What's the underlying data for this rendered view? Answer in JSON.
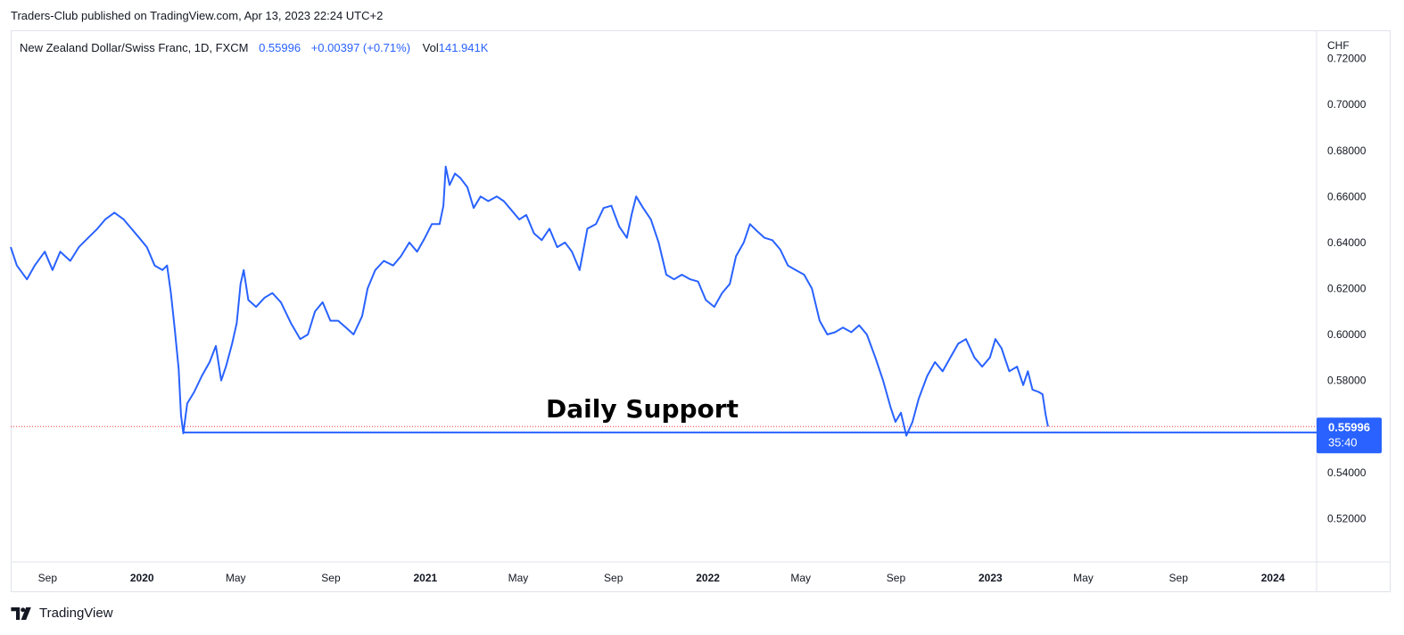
{
  "publisher_line": "Traders-Club published on TradingView.com, Apr 13, 2023 22:24 UTC+2",
  "legend": {
    "symbol": "New Zealand Dollar/Swiss Franc, 1D, FXCM",
    "last": "0.55996",
    "change": "+0.00397 (+0.71%)",
    "vol_label": "Vol",
    "vol_value": "141.941K"
  },
  "footer": {
    "brand": "TradingView",
    "logo_icon": "tradingview-logo-icon"
  },
  "colors": {
    "line": "#2962ff",
    "grid": "#e0e3eb",
    "text": "#131722",
    "last_dotted": "#f23645"
  },
  "chart_data": {
    "type": "line",
    "ylabel": "CHF",
    "ylim": [
      0.505,
      0.728
    ],
    "y_ticks": [
      "0.72000",
      "0.70000",
      "0.68000",
      "0.66000",
      "0.64000",
      "0.62000",
      "0.60000",
      "0.58000",
      "0.54000",
      "0.52000"
    ],
    "x_range": [
      "2019-08-12",
      "2024-03-25"
    ],
    "x_ticks": [
      {
        "label": "Sep",
        "date": "2019-09-01",
        "bold": false
      },
      {
        "label": "2020",
        "date": "2020-01-01",
        "bold": true
      },
      {
        "label": "May",
        "date": "2020-05-01",
        "bold": false
      },
      {
        "label": "Sep",
        "date": "2020-09-01",
        "bold": false
      },
      {
        "label": "2021",
        "date": "2021-01-01",
        "bold": true
      },
      {
        "label": "May",
        "date": "2021-05-01",
        "bold": false
      },
      {
        "label": "Sep",
        "date": "2021-09-01",
        "bold": false
      },
      {
        "label": "2022",
        "date": "2022-01-01",
        "bold": true
      },
      {
        "label": "May",
        "date": "2022-05-01",
        "bold": false
      },
      {
        "label": "Sep",
        "date": "2022-09-01",
        "bold": false
      },
      {
        "label": "2023",
        "date": "2023-01-01",
        "bold": true
      },
      {
        "label": "May",
        "date": "2023-05-01",
        "bold": false
      },
      {
        "label": "Sep",
        "date": "2023-09-01",
        "bold": false
      },
      {
        "label": "2024",
        "date": "2024-01-01",
        "bold": true
      }
    ],
    "series": [
      {
        "points": [
          [
            "2019-08-12",
            0.638
          ],
          [
            "2019-08-20",
            0.63
          ],
          [
            "2019-09-02",
            0.624
          ],
          [
            "2019-09-12",
            0.63
          ],
          [
            "2019-09-25",
            0.636
          ],
          [
            "2019-10-05",
            0.628
          ],
          [
            "2019-10-15",
            0.636
          ],
          [
            "2019-10-28",
            0.632
          ],
          [
            "2019-11-08",
            0.638
          ],
          [
            "2019-11-20",
            0.642
          ],
          [
            "2019-12-02",
            0.646
          ],
          [
            "2019-12-12",
            0.65
          ],
          [
            "2019-12-24",
            0.653
          ],
          [
            "2020-01-05",
            0.65
          ],
          [
            "2020-01-15",
            0.646
          ],
          [
            "2020-01-25",
            0.642
          ],
          [
            "2020-02-04",
            0.638
          ],
          [
            "2020-02-14",
            0.63
          ],
          [
            "2020-02-24",
            0.628
          ],
          [
            "2020-03-01",
            0.63
          ],
          [
            "2020-03-06",
            0.618
          ],
          [
            "2020-03-11",
            0.602
          ],
          [
            "2020-03-16",
            0.585
          ],
          [
            "2020-03-19",
            0.565
          ],
          [
            "2020-03-22",
            0.557
          ],
          [
            "2020-03-27",
            0.57
          ],
          [
            "2020-04-05",
            0.575
          ],
          [
            "2020-04-15",
            0.582
          ],
          [
            "2020-04-25",
            0.588
          ],
          [
            "2020-05-03",
            0.595
          ],
          [
            "2020-05-10",
            0.58
          ],
          [
            "2020-05-16",
            0.586
          ],
          [
            "2020-05-24",
            0.596
          ],
          [
            "2020-05-30",
            0.605
          ],
          [
            "2020-06-04",
            0.622
          ],
          [
            "2020-06-08",
            0.628
          ],
          [
            "2020-06-14",
            0.615
          ],
          [
            "2020-06-24",
            0.612
          ],
          [
            "2020-07-05",
            0.616
          ],
          [
            "2020-07-15",
            0.618
          ],
          [
            "2020-07-26",
            0.614
          ],
          [
            "2020-08-08",
            0.605
          ],
          [
            "2020-08-20",
            0.598
          ],
          [
            "2020-08-30",
            0.6
          ],
          [
            "2020-09-08",
            0.61
          ],
          [
            "2020-09-18",
            0.614
          ],
          [
            "2020-09-28",
            0.606
          ],
          [
            "2020-10-08",
            0.606
          ],
          [
            "2020-10-18",
            0.603
          ],
          [
            "2020-10-28",
            0.6
          ],
          [
            "2020-11-08",
            0.608
          ],
          [
            "2020-11-15",
            0.62
          ],
          [
            "2020-11-25",
            0.628
          ],
          [
            "2020-12-06",
            0.632
          ],
          [
            "2020-12-18",
            0.63
          ],
          [
            "2020-12-28",
            0.634
          ],
          [
            "2021-01-08",
            0.64
          ],
          [
            "2021-01-18",
            0.636
          ],
          [
            "2021-01-28",
            0.642
          ],
          [
            "2021-02-06",
            0.648
          ],
          [
            "2021-02-16",
            0.648
          ],
          [
            "2021-02-21",
            0.656
          ],
          [
            "2021-02-24",
            0.673
          ],
          [
            "2021-03-01",
            0.665
          ],
          [
            "2021-03-08",
            0.67
          ],
          [
            "2021-03-15",
            0.668
          ],
          [
            "2021-03-24",
            0.664
          ],
          [
            "2021-04-01",
            0.655
          ],
          [
            "2021-04-10",
            0.66
          ],
          [
            "2021-04-20",
            0.658
          ],
          [
            "2021-05-01",
            0.66
          ],
          [
            "2021-05-10",
            0.658
          ],
          [
            "2021-05-20",
            0.654
          ],
          [
            "2021-05-30",
            0.65
          ],
          [
            "2021-06-08",
            0.652
          ],
          [
            "2021-06-18",
            0.644
          ],
          [
            "2021-06-28",
            0.641
          ],
          [
            "2021-07-08",
            0.646
          ],
          [
            "2021-07-18",
            0.638
          ],
          [
            "2021-07-28",
            0.64
          ],
          [
            "2021-08-06",
            0.636
          ],
          [
            "2021-08-16",
            0.628
          ],
          [
            "2021-08-26",
            0.646
          ],
          [
            "2021-09-06",
            0.648
          ],
          [
            "2021-09-16",
            0.655
          ],
          [
            "2021-09-26",
            0.656
          ],
          [
            "2021-10-06",
            0.647
          ],
          [
            "2021-10-16",
            0.642
          ],
          [
            "2021-10-22",
            0.652
          ],
          [
            "2021-10-28",
            0.66
          ],
          [
            "2021-11-06",
            0.655
          ],
          [
            "2021-11-16",
            0.65
          ],
          [
            "2021-11-26",
            0.64
          ],
          [
            "2021-12-06",
            0.626
          ],
          [
            "2021-12-16",
            0.624
          ],
          [
            "2021-12-26",
            0.626
          ],
          [
            "2022-01-06",
            0.624
          ],
          [
            "2022-01-16",
            0.623
          ],
          [
            "2022-01-26",
            0.615
          ],
          [
            "2022-02-06",
            0.612
          ],
          [
            "2022-02-16",
            0.618
          ],
          [
            "2022-02-26",
            0.622
          ],
          [
            "2022-03-06",
            0.634
          ],
          [
            "2022-03-16",
            0.64
          ],
          [
            "2022-03-24",
            0.648
          ],
          [
            "2022-04-02",
            0.645
          ],
          [
            "2022-04-12",
            0.642
          ],
          [
            "2022-04-22",
            0.641
          ],
          [
            "2022-05-02",
            0.637
          ],
          [
            "2022-05-12",
            0.63
          ],
          [
            "2022-05-22",
            0.628
          ],
          [
            "2022-06-02",
            0.626
          ],
          [
            "2022-06-12",
            0.62
          ],
          [
            "2022-06-22",
            0.606
          ],
          [
            "2022-07-02",
            0.6
          ],
          [
            "2022-07-12",
            0.601
          ],
          [
            "2022-07-22",
            0.603
          ],
          [
            "2022-08-02",
            0.601
          ],
          [
            "2022-08-12",
            0.604
          ],
          [
            "2022-08-22",
            0.6
          ],
          [
            "2022-09-02",
            0.59
          ],
          [
            "2022-09-12",
            0.58
          ],
          [
            "2022-09-22",
            0.568
          ],
          [
            "2022-09-28",
            0.562
          ],
          [
            "2022-10-05",
            0.566
          ],
          [
            "2022-10-12",
            0.556
          ],
          [
            "2022-10-20",
            0.562
          ],
          [
            "2022-10-28",
            0.572
          ],
          [
            "2022-11-08",
            0.582
          ],
          [
            "2022-11-18",
            0.588
          ],
          [
            "2022-11-28",
            0.584
          ],
          [
            "2022-12-08",
            0.59
          ],
          [
            "2022-12-18",
            0.596
          ],
          [
            "2022-12-28",
            0.598
          ],
          [
            "2023-01-08",
            0.59
          ],
          [
            "2023-01-18",
            0.586
          ],
          [
            "2023-01-28",
            0.59
          ],
          [
            "2023-02-04",
            0.598
          ],
          [
            "2023-02-12",
            0.594
          ],
          [
            "2023-02-22",
            0.584
          ],
          [
            "2023-03-04",
            0.586
          ],
          [
            "2023-03-12",
            0.578
          ],
          [
            "2023-03-18",
            0.584
          ],
          [
            "2023-03-24",
            0.576
          ],
          [
            "2023-04-01",
            0.575
          ],
          [
            "2023-04-06",
            0.574
          ],
          [
            "2023-04-10",
            0.565
          ],
          [
            "2023-04-13",
            0.56
          ]
        ]
      }
    ],
    "annotations": {
      "support_label": "Daily Support",
      "support_level": 0.5574,
      "support_start": "2020-03-22",
      "last_price_label": "0.55996",
      "last_price_value": 0.55996,
      "countdown_label": "35:40"
    }
  }
}
